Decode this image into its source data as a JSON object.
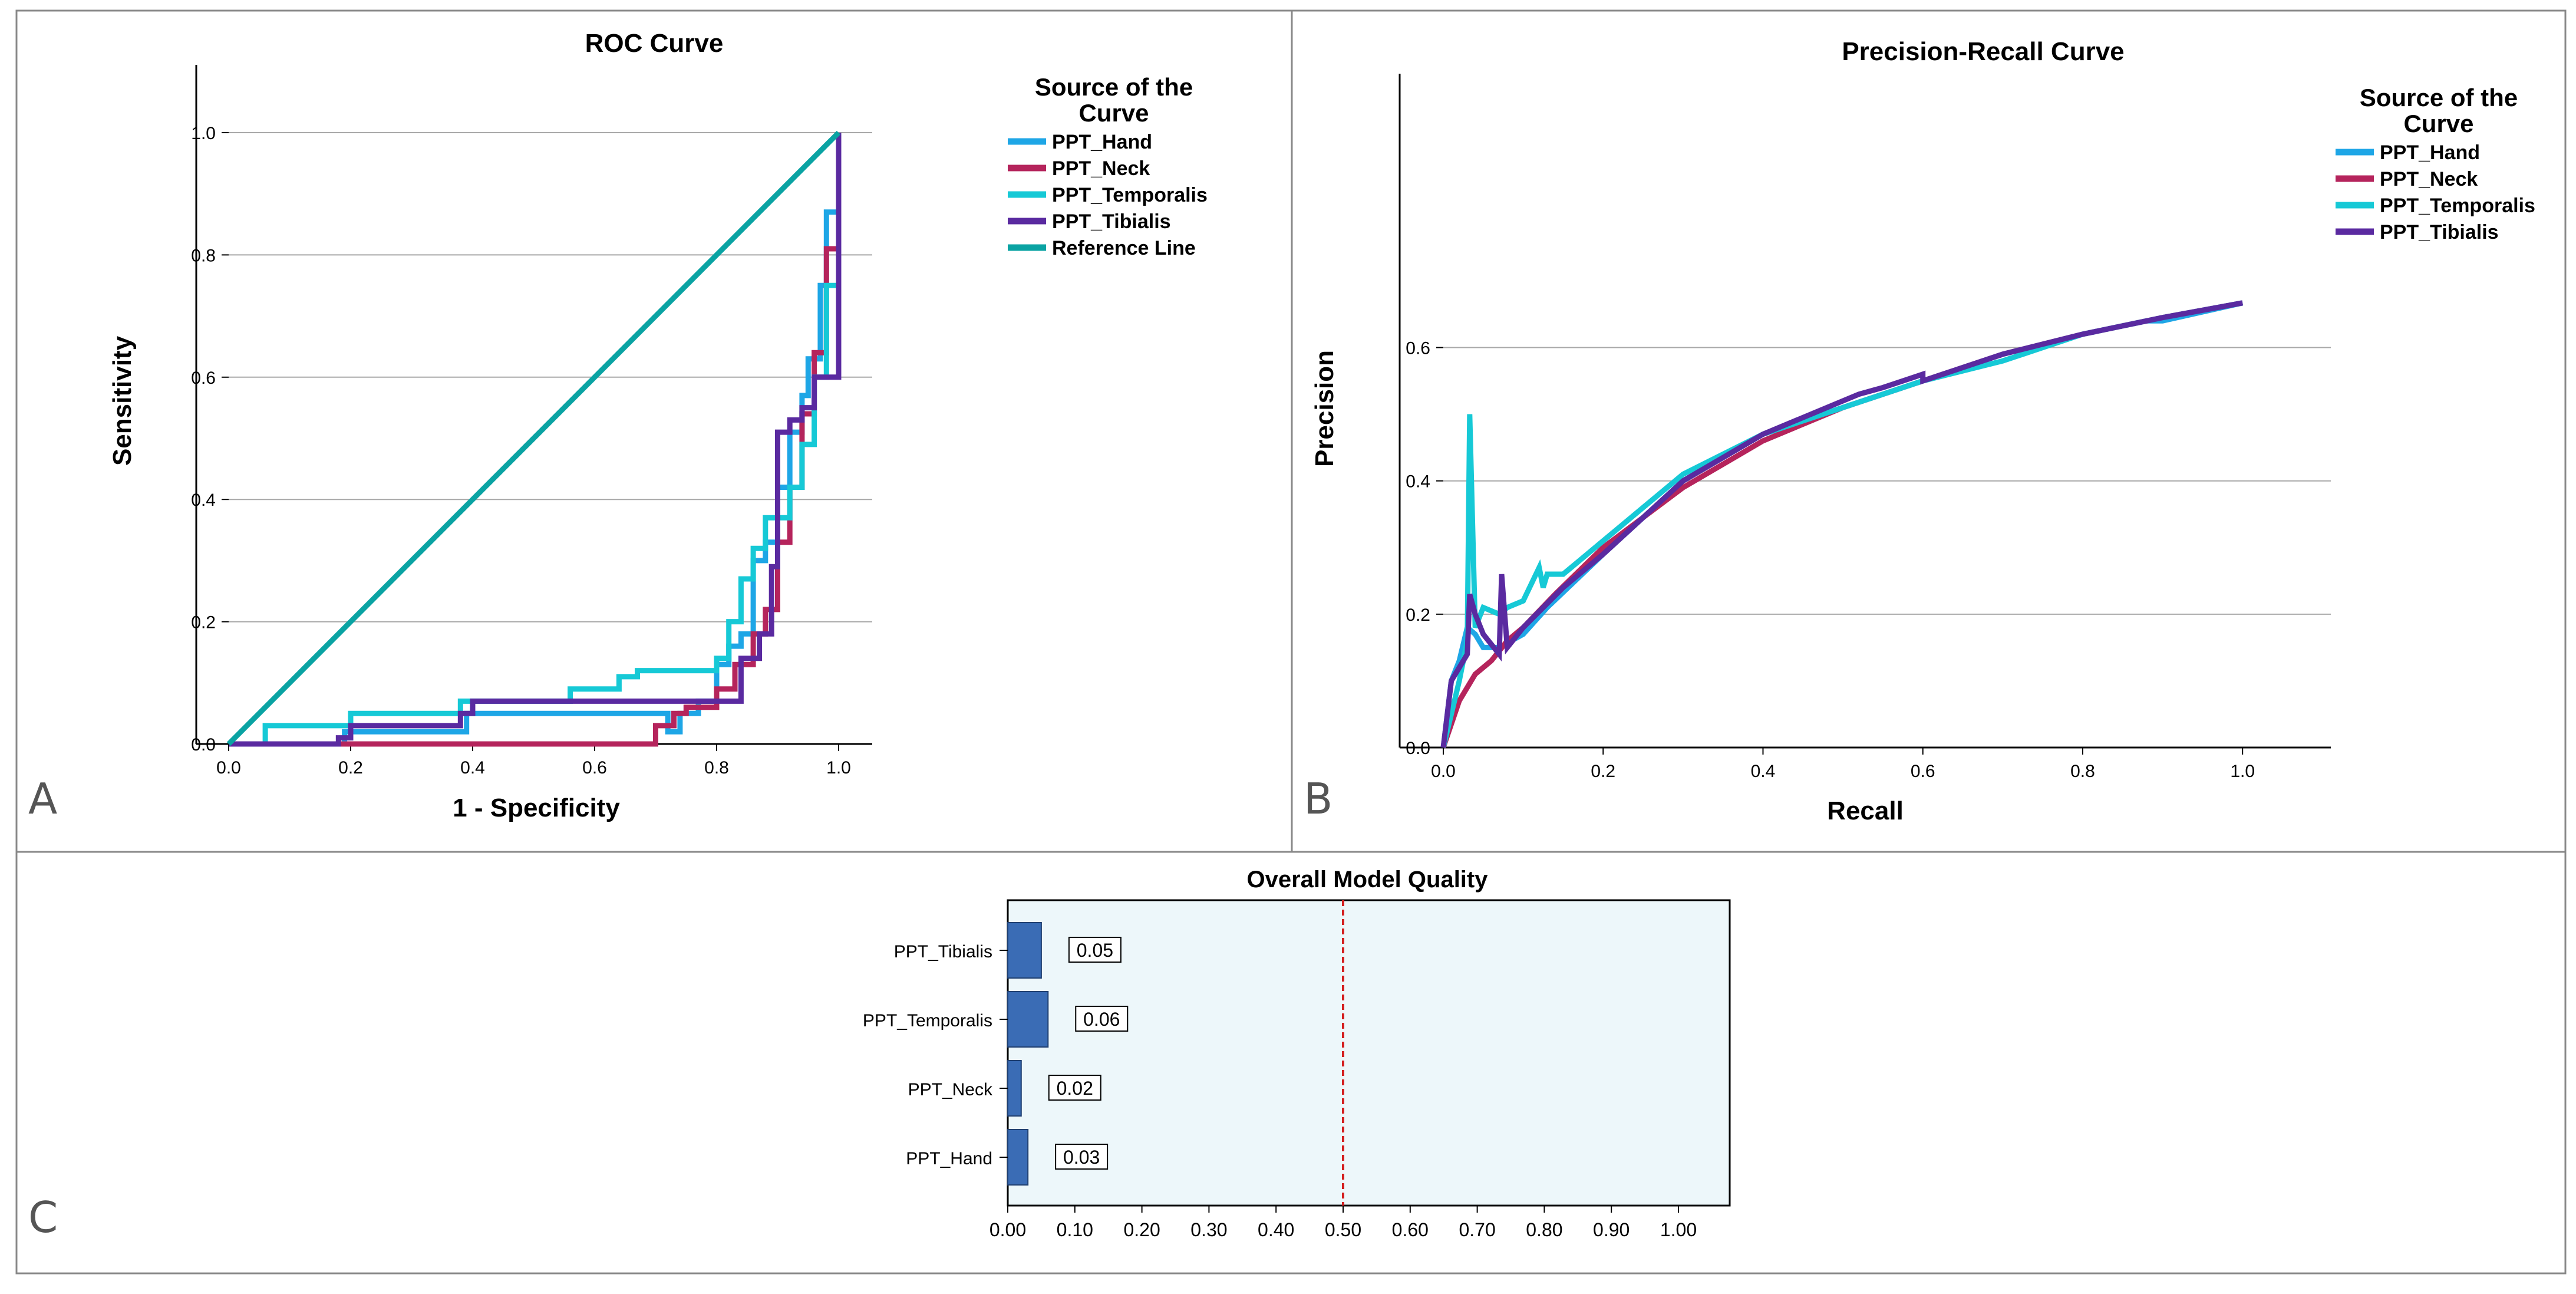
{
  "chart_data": [
    {
      "panel": "A",
      "type": "line",
      "title": "ROC Curve",
      "xlabel": "1 - Specificity",
      "ylabel": "Sensitivity",
      "xlim": [
        0,
        1
      ],
      "ylim": [
        0,
        1
      ],
      "xticks": [
        "0.0",
        "0.2",
        "0.4",
        "0.6",
        "0.8",
        "1.0"
      ],
      "yticks": [
        "0.0",
        "0.2",
        "0.4",
        "0.6",
        "0.8",
        "1.0"
      ],
      "grid": "horizontal",
      "legend_title": "Source of the Curve",
      "legend_position": "right",
      "series": [
        {
          "name": "PPT_Hand",
          "color": "#1ea6e6",
          "x": [
            0,
            0.19,
            0.19,
            0.39,
            0.39,
            0.39,
            0.57,
            0.72,
            0.72,
            0.74,
            0.74,
            0.77,
            0.77,
            0.8,
            0.8,
            0.82,
            0.82,
            0.84,
            0.84,
            0.86,
            0.86,
            0.88,
            0.88,
            0.9,
            0.9,
            0.92,
            0.92,
            0.94,
            0.94,
            0.95,
            0.95,
            0.97,
            0.97,
            0.98,
            0.98,
            1,
            1
          ],
          "y": [
            0,
            0,
            0.02,
            0.02,
            0.04,
            0.05,
            0.05,
            0.05,
            0.02,
            0.02,
            0.05,
            0.05,
            0.07,
            0.07,
            0.13,
            0.13,
            0.16,
            0.16,
            0.18,
            0.18,
            0.3,
            0.3,
            0.33,
            0.33,
            0.42,
            0.42,
            0.51,
            0.51,
            0.57,
            0.57,
            0.63,
            0.63,
            0.75,
            0.75,
            0.87,
            0.87,
            1
          ]
        },
        {
          "name": "PPT_Neck",
          "color": "#b5245c",
          "x": [
            0,
            0.7,
            0.7,
            0.73,
            0.73,
            0.75,
            0.75,
            0.8,
            0.8,
            0.83,
            0.83,
            0.86,
            0.86,
            0.88,
            0.88,
            0.9,
            0.9,
            0.92,
            0.92,
            0.94,
            0.94,
            0.96,
            0.96,
            0.98,
            0.98,
            1,
            1
          ],
          "y": [
            0,
            0,
            0.03,
            0.03,
            0.05,
            0.05,
            0.06,
            0.06,
            0.09,
            0.09,
            0.13,
            0.13,
            0.18,
            0.18,
            0.22,
            0.22,
            0.33,
            0.33,
            0.42,
            0.42,
            0.54,
            0.54,
            0.64,
            0.64,
            0.81,
            0.81,
            1
          ]
        },
        {
          "name": "PPT_Temporalis",
          "color": "#16c9d6",
          "x": [
            0,
            0.06,
            0.06,
            0.2,
            0.2,
            0.38,
            0.38,
            0.56,
            0.56,
            0.64,
            0.64,
            0.67,
            0.67,
            0.8,
            0.8,
            0.82,
            0.82,
            0.84,
            0.84,
            0.86,
            0.86,
            0.88,
            0.88,
            0.92,
            0.92,
            0.94,
            0.94,
            0.96,
            0.96,
            0.98,
            0.98,
            1,
            1
          ],
          "y": [
            0,
            0,
            0.03,
            0.03,
            0.05,
            0.05,
            0.07,
            0.07,
            0.09,
            0.09,
            0.11,
            0.11,
            0.12,
            0.12,
            0.14,
            0.14,
            0.2,
            0.2,
            0.27,
            0.27,
            0.32,
            0.32,
            0.37,
            0.37,
            0.42,
            0.42,
            0.49,
            0.49,
            0.6,
            0.6,
            0.75,
            0.75,
            1
          ]
        },
        {
          "name": "PPT_Tibialis",
          "color": "#5a2aa0",
          "x": [
            0,
            0.18,
            0.18,
            0.2,
            0.2,
            0.38,
            0.38,
            0.4,
            0.4,
            0.84,
            0.84,
            0.87,
            0.87,
            0.89,
            0.89,
            0.9,
            0.9,
            0.92,
            0.92,
            0.94,
            0.94,
            0.96,
            0.96,
            0.98,
            0.98,
            1,
            1
          ],
          "y": [
            0,
            0,
            0.01,
            0.01,
            0.03,
            0.03,
            0.05,
            0.05,
            0.07,
            0.07,
            0.14,
            0.14,
            0.18,
            0.18,
            0.29,
            0.29,
            0.51,
            0.51,
            0.53,
            0.53,
            0.55,
            0.55,
            0.6,
            0.6,
            0.6,
            0.6,
            1
          ]
        },
        {
          "name": "Reference Line",
          "color": "#0aa3a3",
          "x": [
            0,
            1
          ],
          "y": [
            0,
            1
          ]
        }
      ]
    },
    {
      "panel": "B",
      "type": "line",
      "title": "Precision-Recall Curve",
      "xlabel": "Recall",
      "ylabel": "Precision",
      "xlim": [
        0,
        1.05
      ],
      "ylim": [
        0,
        0.78
      ],
      "xticks": [
        "0.0",
        "0.2",
        "0.4",
        "0.6",
        "0.8",
        "1.0"
      ],
      "yticks": [
        "0.0",
        "0.2",
        "0.4",
        "0.6"
      ],
      "grid": "horizontal",
      "legend_title": "Source of the Curve",
      "legend_position": "right",
      "series": [
        {
          "name": "PPT_Hand",
          "color": "#1ea6e6",
          "x": [
            0,
            0.01,
            0.02,
            0.03,
            0.04,
            0.05,
            0.07,
            0.1,
            0.13,
            0.2,
            0.3,
            0.4,
            0.5,
            0.6,
            0.7,
            0.8,
            0.88,
            0.9,
            1.0
          ],
          "y": [
            0,
            0.1,
            0.13,
            0.18,
            0.17,
            0.15,
            0.15,
            0.17,
            0.21,
            0.29,
            0.4,
            0.47,
            0.51,
            0.55,
            0.59,
            0.62,
            0.64,
            0.64,
            0.667
          ]
        },
        {
          "name": "PPT_Neck",
          "color": "#b5245c",
          "x": [
            0,
            0.02,
            0.04,
            0.06,
            0.08,
            0.1,
            0.14,
            0.2,
            0.3,
            0.4,
            0.5,
            0.6,
            0.7,
            0.8,
            0.9,
            1.0
          ],
          "y": [
            0,
            0.07,
            0.11,
            0.13,
            0.16,
            0.18,
            0.23,
            0.3,
            0.39,
            0.46,
            0.51,
            0.55,
            0.59,
            0.62,
            0.645,
            0.667
          ]
        },
        {
          "name": "PPT_Temporalis",
          "color": "#16c9d6",
          "x": [
            0,
            0.02,
            0.03,
            0.033,
            0.04,
            0.05,
            0.07,
            0.08,
            0.1,
            0.12,
            0.125,
            0.13,
            0.15,
            0.2,
            0.3,
            0.4,
            0.5,
            0.6,
            0.7,
            0.8,
            0.9,
            1.0
          ],
          "y": [
            0,
            0.1,
            0.16,
            0.5,
            0.18,
            0.21,
            0.2,
            0.21,
            0.22,
            0.27,
            0.24,
            0.26,
            0.26,
            0.31,
            0.41,
            0.47,
            0.51,
            0.55,
            0.58,
            0.62,
            0.645,
            0.667
          ]
        },
        {
          "name": "PPT_Tibialis",
          "color": "#5a2aa0",
          "x": [
            0,
            0.01,
            0.03,
            0.033,
            0.04,
            0.05,
            0.07,
            0.073,
            0.08,
            0.1,
            0.15,
            0.2,
            0.3,
            0.4,
            0.5,
            0.52,
            0.55,
            0.6,
            0.6,
            0.7,
            0.8,
            0.9,
            1.0
          ],
          "y": [
            0,
            0.1,
            0.14,
            0.23,
            0.2,
            0.17,
            0.14,
            0.26,
            0.15,
            0.18,
            0.24,
            0.29,
            0.4,
            0.47,
            0.52,
            0.53,
            0.54,
            0.56,
            0.55,
            0.59,
            0.62,
            0.645,
            0.667
          ]
        }
      ]
    },
    {
      "panel": "C",
      "type": "bar",
      "orientation": "horizontal",
      "title": "Overall Model Quality",
      "categories": [
        "PPT_Tibialis",
        "PPT_Temporalis",
        "PPT_Neck",
        "PPT_Hand"
      ],
      "values": [
        0.05,
        0.06,
        0.02,
        0.03
      ],
      "value_labels": [
        "0.05",
        "0.06",
        "0.02",
        "0.03"
      ],
      "xlim": [
        0,
        1.05
      ],
      "xticks": [
        "0.00",
        "0.10",
        "0.20",
        "0.30",
        "0.40",
        "0.50",
        "0.60",
        "0.70",
        "0.80",
        "0.90",
        "1.00"
      ],
      "reference_line": 0.5,
      "bar_color": "#3a6cb5",
      "plot_background": "#edf7fa",
      "reference_color": "#d42020"
    }
  ]
}
